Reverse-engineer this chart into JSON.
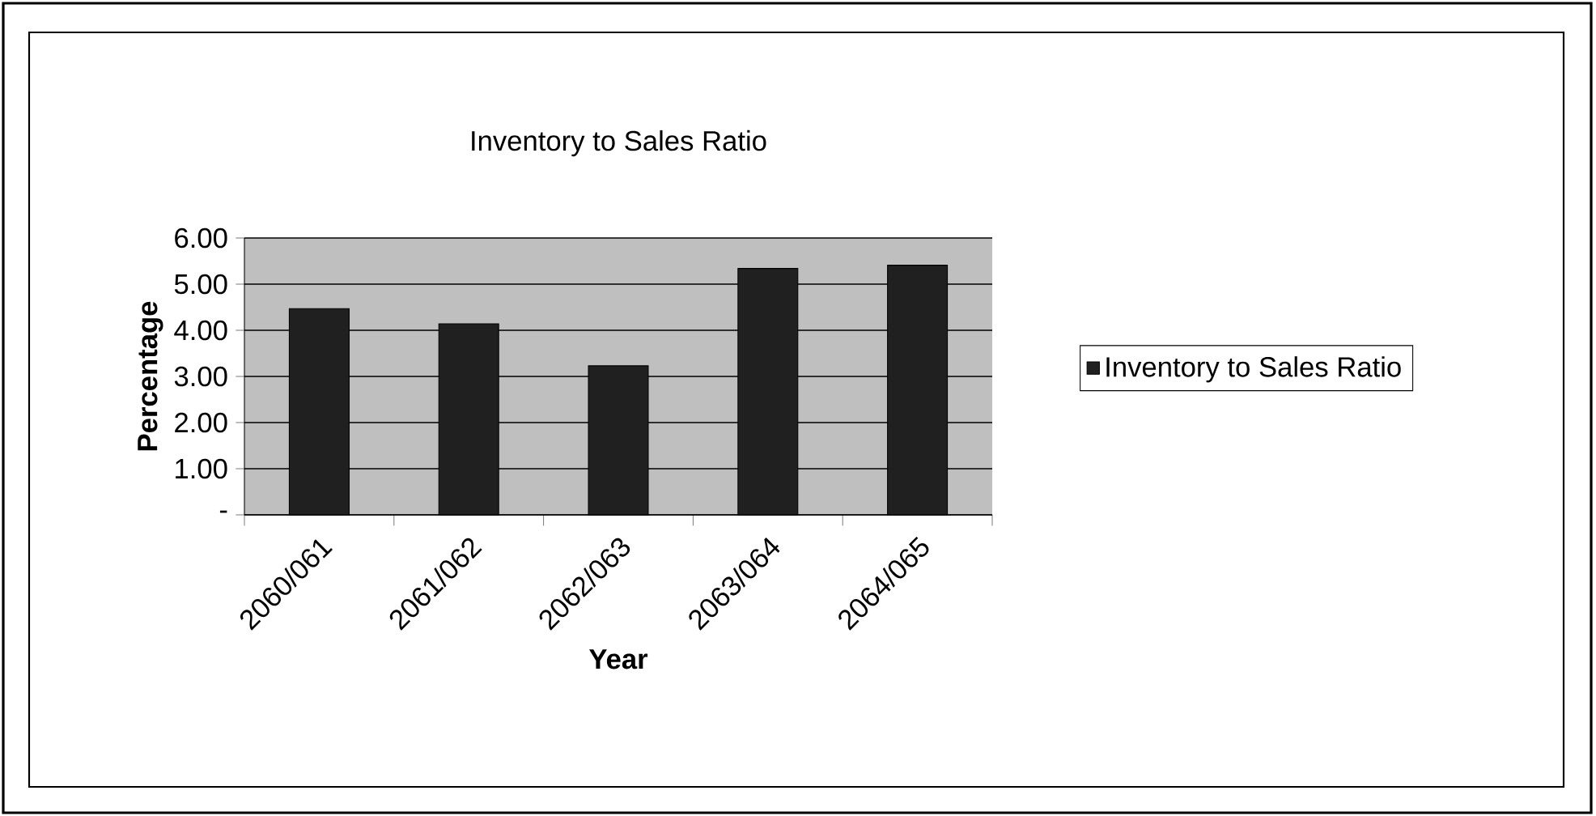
{
  "chart_data": {
    "type": "bar",
    "title": "Inventory to Sales Ratio",
    "xlabel": "Year",
    "ylabel": "Percentage",
    "categories": [
      "2060/061",
      "2061/062",
      "2062/063",
      "2063/064",
      "2064/065"
    ],
    "series": [
      {
        "name": "Inventory to Sales Ratio",
        "color": "#202020",
        "values": [
          4.47,
          4.14,
          3.23,
          5.34,
          5.41
        ]
      }
    ],
    "ylim": [
      0,
      6
    ],
    "yticks": [
      {
        "value": 0,
        "label": "-"
      },
      {
        "value": 1,
        "label": "1.00"
      },
      {
        "value": 2,
        "label": "2.00"
      },
      {
        "value": 3,
        "label": "3.00"
      },
      {
        "value": 4,
        "label": "4.00"
      },
      {
        "value": 5,
        "label": "5.00"
      },
      {
        "value": 6,
        "label": "6.00"
      }
    ],
    "grid": "y",
    "legend": "right"
  }
}
